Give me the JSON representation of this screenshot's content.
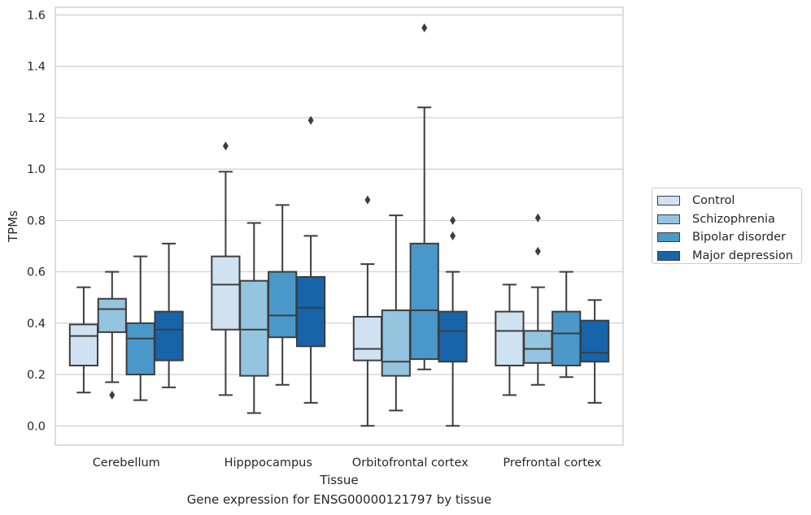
{
  "chart_data": {
    "type": "box",
    "title": "",
    "caption": "Gene expression for ENSG00000121797 by tissue",
    "xlabel": "Tissue",
    "ylabel": "TPMs",
    "ylim": [
      -0.075,
      1.63
    ],
    "yticks": [
      0.0,
      0.2,
      0.4,
      0.6,
      0.8,
      1.0,
      1.2,
      1.4,
      1.6
    ],
    "ytick_labels": [
      "0.0",
      "0.2",
      "0.4",
      "0.6",
      "0.8",
      "1.0",
      "1.2",
      "1.4",
      "1.6"
    ],
    "grid": "horizontal",
    "legend_position": "right-outside",
    "categories": [
      "Cerebellum",
      "Hipppocampus",
      "Orbitofrontal cortex",
      "Prefrontal cortex"
    ],
    "series": [
      {
        "name": "Control",
        "color": "#d0e1f2",
        "boxes": [
          {
            "whislo": 0.13,
            "q1": 0.235,
            "med": 0.35,
            "q3": 0.395,
            "whishi": 0.54,
            "fliers": []
          },
          {
            "whislo": 0.12,
            "q1": 0.375,
            "med": 0.55,
            "q3": 0.66,
            "whishi": 0.99,
            "fliers": [
              1.09
            ]
          },
          {
            "whislo": 0.0,
            "q1": 0.255,
            "med": 0.3,
            "q3": 0.425,
            "whishi": 0.63,
            "fliers": [
              0.88
            ]
          },
          {
            "whislo": 0.12,
            "q1": 0.235,
            "med": 0.37,
            "q3": 0.445,
            "whishi": 0.55,
            "fliers": []
          }
        ]
      },
      {
        "name": "Schizophrenia",
        "color": "#94c4df",
        "boxes": [
          {
            "whislo": 0.17,
            "q1": 0.365,
            "med": 0.455,
            "q3": 0.495,
            "whishi": 0.6,
            "fliers": [
              0.12
            ]
          },
          {
            "whislo": 0.05,
            "q1": 0.195,
            "med": 0.375,
            "q3": 0.565,
            "whishi": 0.79,
            "fliers": []
          },
          {
            "whislo": 0.06,
            "q1": 0.195,
            "med": 0.25,
            "q3": 0.45,
            "whishi": 0.82,
            "fliers": []
          },
          {
            "whislo": 0.16,
            "q1": 0.245,
            "med": 0.3,
            "q3": 0.37,
            "whishi": 0.54,
            "fliers": [
              0.68,
              0.81
            ]
          }
        ]
      },
      {
        "name": "Bipolar disorder",
        "color": "#4a98c9",
        "boxes": [
          {
            "whislo": 0.1,
            "q1": 0.2,
            "med": 0.34,
            "q3": 0.4,
            "whishi": 0.66,
            "fliers": []
          },
          {
            "whislo": 0.16,
            "q1": 0.345,
            "med": 0.43,
            "q3": 0.6,
            "whishi": 0.86,
            "fliers": []
          },
          {
            "whislo": 0.22,
            "q1": 0.26,
            "med": 0.45,
            "q3": 0.71,
            "whishi": 1.24,
            "fliers": [
              1.55
            ]
          },
          {
            "whislo": 0.19,
            "q1": 0.235,
            "med": 0.36,
            "q3": 0.445,
            "whishi": 0.6,
            "fliers": []
          }
        ]
      },
      {
        "name": "Major depression",
        "color": "#1764ab",
        "boxes": [
          {
            "whislo": 0.15,
            "q1": 0.255,
            "med": 0.375,
            "q3": 0.445,
            "whishi": 0.71,
            "fliers": []
          },
          {
            "whislo": 0.09,
            "q1": 0.31,
            "med": 0.46,
            "q3": 0.58,
            "whishi": 0.74,
            "fliers": [
              1.19
            ]
          },
          {
            "whislo": 0.0,
            "q1": 0.25,
            "med": 0.37,
            "q3": 0.445,
            "whishi": 0.6,
            "fliers": [
              0.74,
              0.8
            ]
          },
          {
            "whislo": 0.09,
            "q1": 0.25,
            "med": 0.285,
            "q3": 0.41,
            "whishi": 0.49,
            "fliers": []
          }
        ]
      }
    ]
  }
}
